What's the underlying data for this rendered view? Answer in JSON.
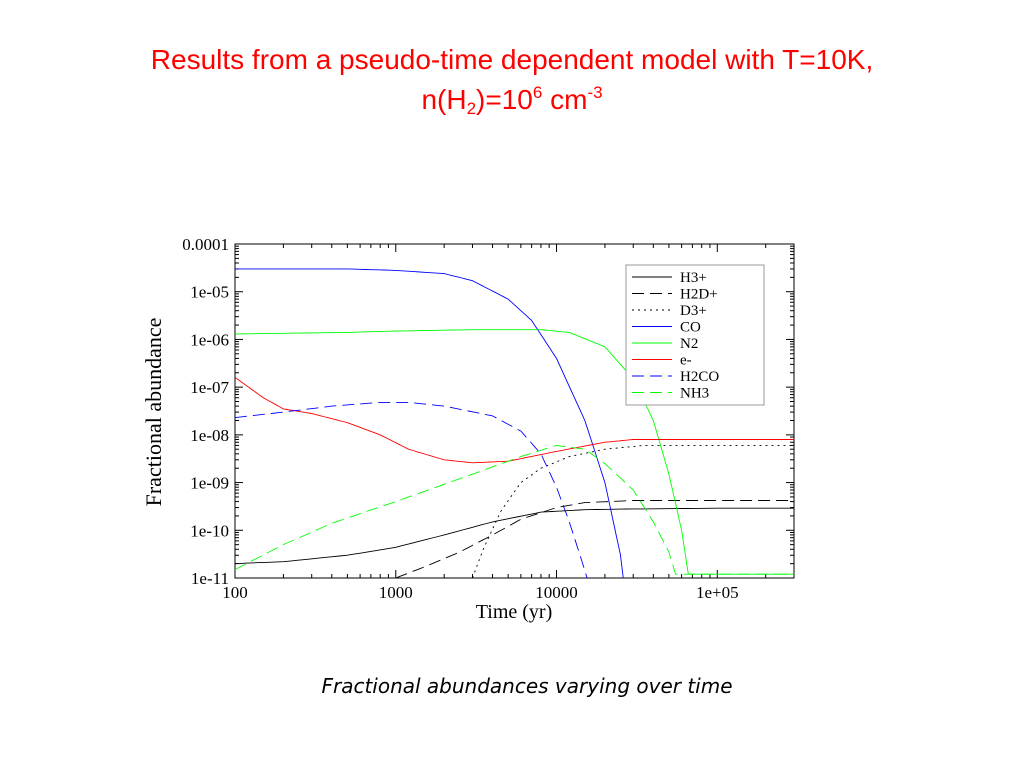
{
  "slide": {
    "title_line1": "Results from a pseudo-time dependent model with T=10K,",
    "title_line2": {
      "prefix": "n(H",
      "sub": "2",
      "mid": ")=10",
      "sup": "6",
      "unit": " cm",
      "unit_sup": "-3"
    },
    "caption": "Fractional abundances varying over time",
    "title_color": "#ff0000"
  },
  "chart_data": {
    "type": "line",
    "xlabel": "Time (yr)",
    "ylabel": "Fractional abundance",
    "x_scale": "log",
    "y_scale": "log",
    "xlim": [
      100,
      300000
    ],
    "ylim": [
      1e-11,
      0.0001
    ],
    "x_ticks": [
      {
        "value": 100,
        "label": "100"
      },
      {
        "value": 1000,
        "label": "1000"
      },
      {
        "value": 10000,
        "label": "10000"
      },
      {
        "value": 100000,
        "label": "1e+05"
      }
    ],
    "y_ticks": [
      {
        "value": 1e-11,
        "label": "1e-11"
      },
      {
        "value": 1e-10,
        "label": "1e-10"
      },
      {
        "value": 1e-09,
        "label": "1e-09"
      },
      {
        "value": 1e-08,
        "label": "1e-08"
      },
      {
        "value": 1e-07,
        "label": "1e-07"
      },
      {
        "value": 1e-06,
        "label": "1e-06"
      },
      {
        "value": 1e-05,
        "label": "1e-05"
      },
      {
        "value": 0.0001,
        "label": "0.0001"
      }
    ],
    "grid": false,
    "legend_position": "top-right",
    "series": [
      {
        "name": "H3+",
        "color": "#000000",
        "dash": "solid",
        "points": [
          [
            100,
            2e-11
          ],
          [
            200,
            2.2e-11
          ],
          [
            500,
            3e-11
          ],
          [
            1000,
            4.4e-11
          ],
          [
            2000,
            8e-11
          ],
          [
            4000,
            1.5e-10
          ],
          [
            8000,
            2.4e-10
          ],
          [
            15000,
            2.7e-10
          ],
          [
            30000,
            2.8e-10
          ],
          [
            100000,
            2.9e-10
          ],
          [
            300000,
            2.9e-10
          ]
        ]
      },
      {
        "name": "H2D+",
        "color": "#000000",
        "dash": "dashed",
        "points": [
          [
            1000,
            1e-11
          ],
          [
            1500,
            1.7e-11
          ],
          [
            2500,
            3.5e-11
          ],
          [
            4000,
            8e-11
          ],
          [
            6000,
            1.7e-10
          ],
          [
            10000,
            3e-10
          ],
          [
            15000,
            3.8e-10
          ],
          [
            30000,
            4.2e-10
          ],
          [
            100000,
            4.2e-10
          ],
          [
            300000,
            4.2e-10
          ]
        ]
      },
      {
        "name": "D3+",
        "color": "#000000",
        "dash": "dotted",
        "points": [
          [
            3000,
            1e-11
          ],
          [
            3500,
            4e-11
          ],
          [
            4500,
            2.5e-10
          ],
          [
            6000,
            1e-09
          ],
          [
            8000,
            2e-09
          ],
          [
            12000,
            3.5e-09
          ],
          [
            20000,
            5e-09
          ],
          [
            35000,
            6e-09
          ],
          [
            100000,
            6e-09
          ],
          [
            300000,
            6e-09
          ]
        ]
      },
      {
        "name": "CO",
        "color": "#0000ff",
        "dash": "solid",
        "points": [
          [
            100,
            3e-05
          ],
          [
            500,
            3e-05
          ],
          [
            1000,
            2.8e-05
          ],
          [
            2000,
            2.4e-05
          ],
          [
            3000,
            1.7e-05
          ],
          [
            5000,
            7e-06
          ],
          [
            7000,
            2.5e-06
          ],
          [
            10000,
            4e-07
          ],
          [
            15000,
            2e-08
          ],
          [
            20000,
            1e-09
          ],
          [
            25000,
            3e-11
          ],
          [
            26000,
            1e-11
          ]
        ]
      },
      {
        "name": "N2",
        "color": "#00ff00",
        "dash": "solid",
        "points": [
          [
            100,
            1.3e-06
          ],
          [
            500,
            1.4e-06
          ],
          [
            1000,
            1.5e-06
          ],
          [
            3000,
            1.6e-06
          ],
          [
            8000,
            1.6e-06
          ],
          [
            12000,
            1.4e-06
          ],
          [
            20000,
            7e-07
          ],
          [
            30000,
            1.5e-07
          ],
          [
            40000,
            2e-08
          ],
          [
            50000,
            1.5e-09
          ],
          [
            60000,
            1e-10
          ],
          [
            66000,
            1.2e-11
          ],
          [
            100000,
            1.2e-11
          ],
          [
            300000,
            1.2e-11
          ]
        ]
      },
      {
        "name": "e-",
        "color": "#ff0000",
        "dash": "solid",
        "points": [
          [
            100,
            1.6e-07
          ],
          [
            150,
            6e-08
          ],
          [
            200,
            3.5e-08
          ],
          [
            300,
            2.8e-08
          ],
          [
            500,
            1.8e-08
          ],
          [
            800,
            1e-08
          ],
          [
            1200,
            5e-09
          ],
          [
            2000,
            3e-09
          ],
          [
            3000,
            2.6e-09
          ],
          [
            5000,
            2.8e-09
          ],
          [
            10000,
            4.5e-09
          ],
          [
            20000,
            7e-09
          ],
          [
            30000,
            8e-09
          ],
          [
            100000,
            8e-09
          ],
          [
            300000,
            8e-09
          ]
        ]
      },
      {
        "name": "H2CO",
        "color": "#0000ff",
        "dash": "dashed",
        "points": [
          [
            100,
            2.3e-08
          ],
          [
            200,
            3e-08
          ],
          [
            400,
            4e-08
          ],
          [
            800,
            4.8e-08
          ],
          [
            1200,
            4.8e-08
          ],
          [
            2000,
            4e-08
          ],
          [
            4000,
            2.5e-08
          ],
          [
            6000,
            1.2e-08
          ],
          [
            8000,
            4e-09
          ],
          [
            10000,
            8e-10
          ],
          [
            12000,
            1.5e-10
          ],
          [
            14000,
            3e-11
          ],
          [
            15500,
            1e-11
          ]
        ]
      },
      {
        "name": "NH3",
        "color": "#00ff00",
        "dash": "dashed",
        "points": [
          [
            100,
            1.5e-11
          ],
          [
            200,
            5e-11
          ],
          [
            400,
            1.4e-10
          ],
          [
            1000,
            4e-10
          ],
          [
            3000,
            1.5e-09
          ],
          [
            6000,
            3.5e-09
          ],
          [
            10000,
            6e-09
          ],
          [
            15000,
            5e-09
          ],
          [
            20000,
            2.5e-09
          ],
          [
            30000,
            7e-10
          ],
          [
            40000,
            1.5e-10
          ],
          [
            50000,
            3.5e-11
          ],
          [
            55000,
            1.2e-11
          ],
          [
            100000,
            1.2e-11
          ],
          [
            300000,
            1.2e-11
          ]
        ]
      }
    ]
  }
}
